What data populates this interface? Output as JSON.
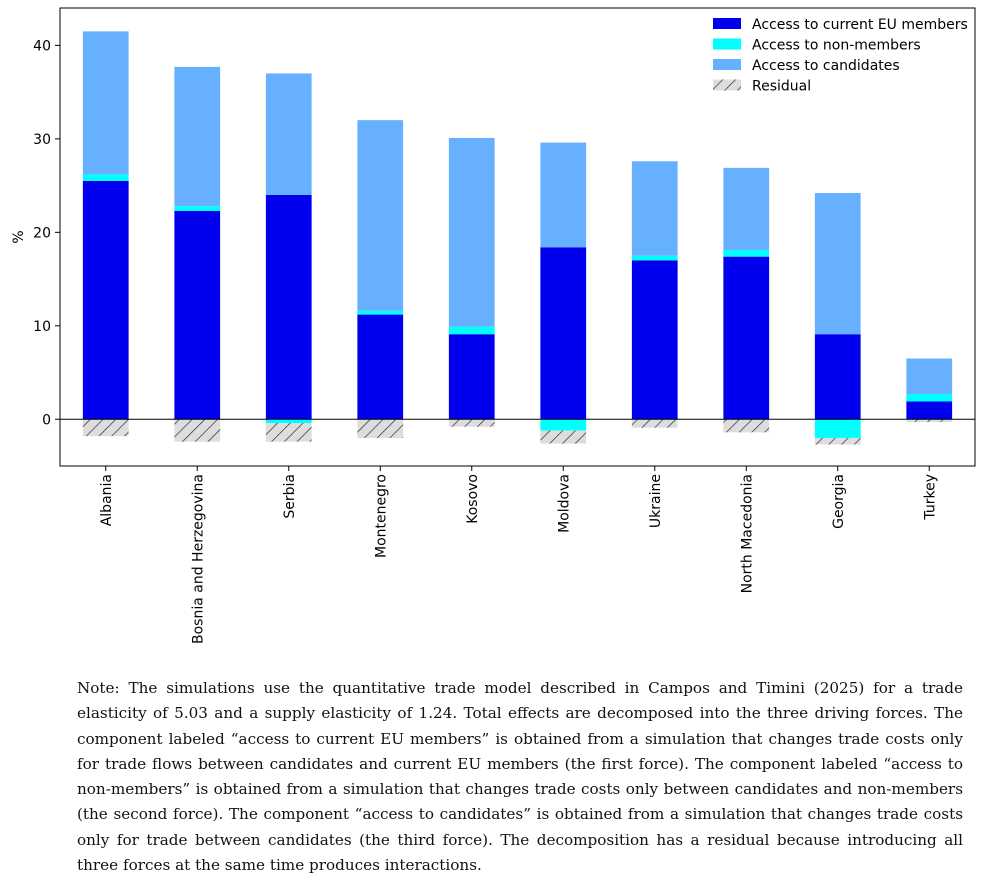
{
  "chart_data": {
    "type": "bar",
    "stacked": true,
    "ylabel": "%",
    "ylim": [
      -5,
      44
    ],
    "yticks": [
      0,
      10,
      20,
      30,
      40
    ],
    "categories": [
      "Albania",
      "Bosnia and Herzegovina",
      "Serbia",
      "Montenegro",
      "Kosovo",
      "Moldova",
      "Ukraine",
      "North Macedonia",
      "Georgia",
      "Turkey"
    ],
    "series": [
      {
        "name": "Access to current EU members",
        "color": "#0000ee",
        "values": [
          25.5,
          22.3,
          24.0,
          11.2,
          9.1,
          18.4,
          17.0,
          17.4,
          9.1,
          1.9
        ]
      },
      {
        "name": "Access to non-members",
        "color": "#00ffff",
        "values": [
          0.7,
          0.5,
          -0.4,
          0.4,
          0.8,
          -1.2,
          0.5,
          0.7,
          -2.0,
          0.8
        ]
      },
      {
        "name": "Access to candidates",
        "color": "#66b0ff",
        "values": [
          15.3,
          14.9,
          13.0,
          20.4,
          20.2,
          11.2,
          10.1,
          8.8,
          15.1,
          3.8
        ]
      },
      {
        "name": "Residual",
        "color": "#dddddd",
        "pattern": "hatch",
        "values": [
          -1.8,
          -2.4,
          -2.0,
          -2.0,
          -0.8,
          -1.4,
          -0.9,
          -1.4,
          -0.7,
          -0.3
        ]
      }
    ],
    "legend_position": "top-right",
    "grid": false
  },
  "note": "Note: The simulations use the quantitative trade model described in Campos and Timini (2025) for a trade elasticity of 5.03 and a supply elasticity of 1.24. Total effects are decomposed into the three driving forces. The component labeled “access to current EU members” is obtained from a simulation that changes trade costs only for trade flows between candidates and current EU members (the first force). The component labeled “access to non-members” is obtained from a simulation that changes trade costs only between candidates and non-members (the second force). The component “access to candidates” is obtained from a simulation that changes trade costs only for trade between candidates (the third force). The decomposition has a residual because introducing all three forces at the same time produces interactions."
}
